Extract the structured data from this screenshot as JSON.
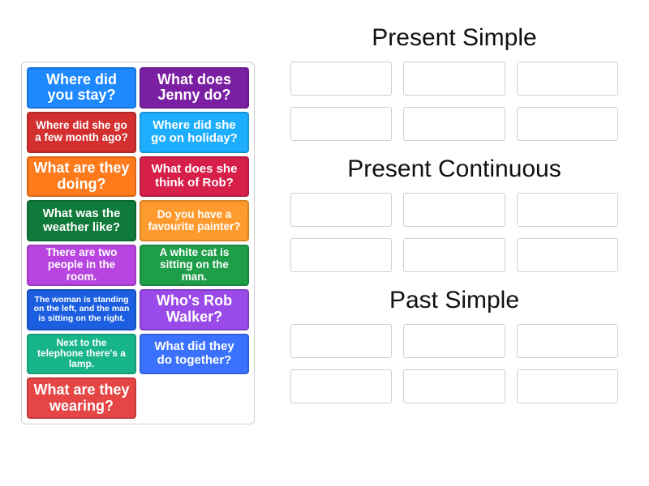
{
  "colors": {
    "blue": "#1e88ff",
    "purple": "#7b1fa2",
    "red": "#d32f2f",
    "cyan": "#1eaeff",
    "orange": "#ff7a1a",
    "crimson": "#d6204a",
    "darkgreen": "#0f7a3a",
    "orange2": "#ff9b2e",
    "magenta": "#b945e0",
    "green": "#1f9e4a",
    "navy": "#1b5fe0",
    "violet": "#9a4ae8",
    "teal": "#19b58a",
    "blue2": "#3a72ff",
    "red2": "#e54545",
    "border": "#cfcfcf",
    "text": "#111111"
  },
  "bin": {
    "cards": [
      {
        "id": "c1",
        "text": "Where did you stay?",
        "color": "blue",
        "size": "lg"
      },
      {
        "id": "c2",
        "text": "What does Jenny do?",
        "color": "purple",
        "size": "lg"
      },
      {
        "id": "c3",
        "text": "Where did she go a few month ago?",
        "color": "red",
        "size": "sm"
      },
      {
        "id": "c4",
        "text": "Where did she go on holiday?",
        "color": "cyan",
        "size": "md"
      },
      {
        "id": "c5",
        "text": "What are they doing?",
        "color": "orange",
        "size": "lg"
      },
      {
        "id": "c6",
        "text": "What does she think of Rob?",
        "color": "crimson",
        "size": "md"
      },
      {
        "id": "c7",
        "text": "What was the weather like?",
        "color": "darkgreen",
        "size": "md"
      },
      {
        "id": "c8",
        "text": "Do you have a favourite painter?",
        "color": "orange2",
        "size": "sm"
      },
      {
        "id": "c9",
        "text": "There are two people in the room.",
        "color": "magenta",
        "size": "sm"
      },
      {
        "id": "c10",
        "text": "A white cat is sitting on the man.",
        "color": "green",
        "size": "sm"
      },
      {
        "id": "c11",
        "text": "The woman is standing on the left, and the man is sitting on the right.",
        "color": "navy",
        "size": "xxs"
      },
      {
        "id": "c12",
        "text": "Who's Rob Walker?",
        "color": "violet",
        "size": "lg"
      },
      {
        "id": "c13",
        "text": "Next to the telephone there's a lamp.",
        "color": "teal",
        "size": "xs"
      },
      {
        "id": "c14",
        "text": "What did they do together?",
        "color": "blue2",
        "size": "md"
      },
      {
        "id": "c15",
        "text": "What are they wearing?",
        "color": "red2",
        "size": "lg"
      }
    ]
  },
  "groups": [
    {
      "id": "g1",
      "title": "Present Simple",
      "slots": 6
    },
    {
      "id": "g2",
      "title": "Present Continuous",
      "slots": 6
    },
    {
      "id": "g3",
      "title": "Past Simple",
      "slots": 6
    }
  ]
}
